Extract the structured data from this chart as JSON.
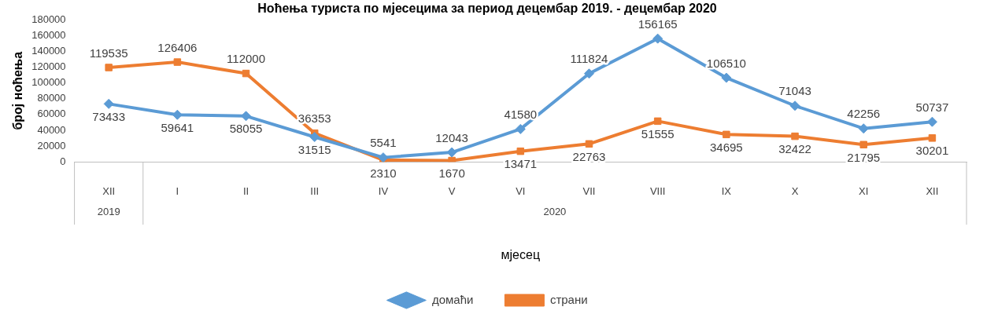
{
  "chart_data": {
    "type": "line",
    "title": "Ноћења туриста по мјесецима за период децембар 2019. - децембар 2020",
    "xlabel": "мјесец",
    "ylabel": "број ноћења",
    "categories": [
      "XII",
      "I",
      "II",
      "III",
      "IV",
      "V",
      "VI",
      "VII",
      "VIII",
      "IX",
      "X",
      "XI",
      "XII"
    ],
    "annotations": [
      "2019",
      "2020"
    ],
    "series": [
      {
        "name": "домаћи",
        "color": "#5b9bd5",
        "marker": "diamond",
        "values": [
          73433,
          59641,
          58055,
          31515,
          5541,
          12043,
          41580,
          111824,
          156165,
          106510,
          71043,
          42256,
          50737
        ]
      },
      {
        "name": "страни",
        "color": "#ed7d31",
        "marker": "square",
        "values": [
          119535,
          126406,
          112000,
          36353,
          2310,
          1670,
          13471,
          22763,
          51555,
          34695,
          32422,
          21795,
          30201
        ]
      }
    ],
    "ylim": [
      0,
      180000
    ],
    "yticks": [
      0,
      20000,
      40000,
      60000,
      80000,
      100000,
      120000,
      140000,
      160000,
      180000
    ],
    "grid": false,
    "legend": "bottom",
    "data_labels": true,
    "line_style": "solid"
  }
}
